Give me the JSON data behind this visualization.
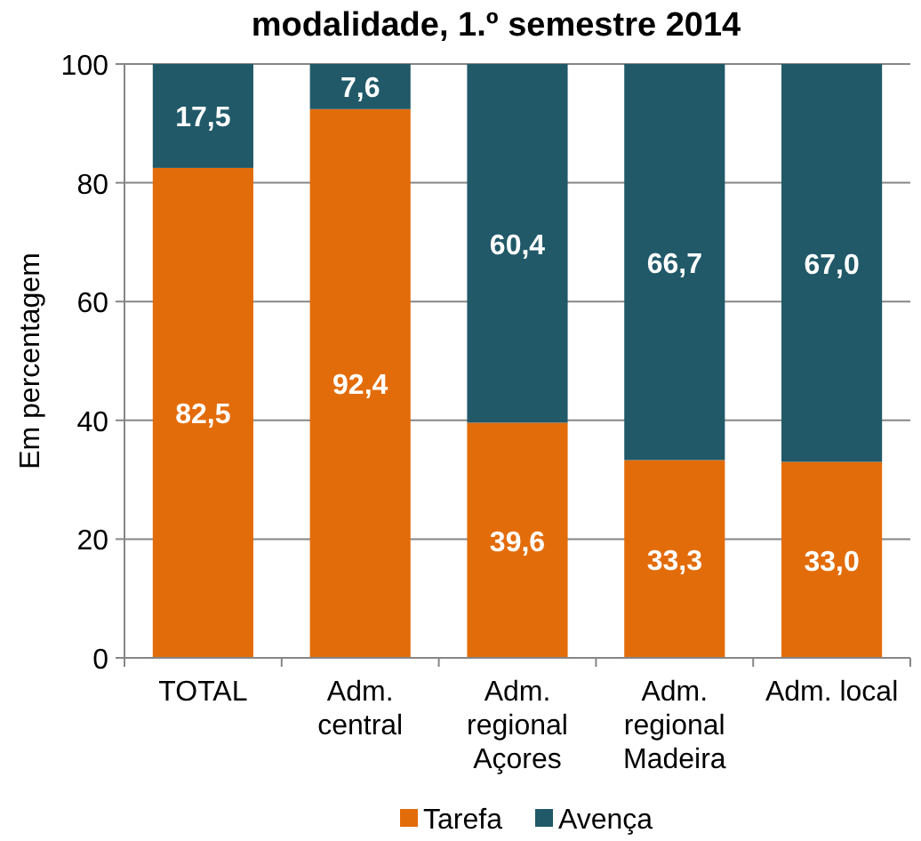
{
  "chart_data": {
    "type": "bar",
    "title": "modalidade, 1.º semestre 2014",
    "ylabel": "Em percentagem",
    "categories": [
      "TOTAL",
      "Adm. central",
      "Adm. regional Açores",
      "Adm. regional Madeira",
      "Adm. local"
    ],
    "stacked": true,
    "series": [
      {
        "name": "Tarefa",
        "color": "#e36c0a",
        "values": [
          82.5,
          92.4,
          39.6,
          33.3,
          33.0
        ],
        "value_labels": [
          "82,5",
          "92,4",
          "39,6",
          "33,3",
          "33,0"
        ]
      },
      {
        "name": "Avença",
        "color": "#215968",
        "values": [
          17.5,
          7.6,
          60.4,
          66.7,
          67.0
        ],
        "value_labels": [
          "17,5",
          "7,6",
          "60,4",
          "66,7",
          "67,0"
        ]
      }
    ],
    "ylim": [
      0,
      100
    ],
    "yticks": [
      0,
      20,
      40,
      60,
      80,
      100
    ],
    "grid": "y",
    "legend": "bottom"
  }
}
